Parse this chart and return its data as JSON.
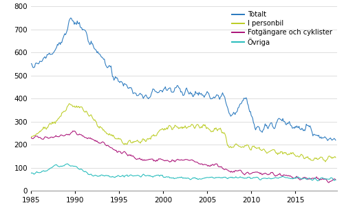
{
  "title": "",
  "ylabel": "",
  "xlabel": "",
  "xlim": [
    1985.0,
    2019.75
  ],
  "ylim": [
    0,
    800
  ],
  "yticks": [
    0,
    100,
    200,
    300,
    400,
    500,
    600,
    700,
    800
  ],
  "xticks": [
    1985,
    1990,
    1995,
    2000,
    2005,
    2010,
    2015
  ],
  "colors": {
    "totalt": "#2878BE",
    "personbil": "#BBCC22",
    "fotgangare": "#AA1177",
    "ovriga": "#22BBBB"
  },
  "legend_labels": [
    "Totalt",
    "I personbil",
    "Fotgängare och cyklister",
    "Övriga"
  ],
  "background_color": "#ffffff",
  "grid_color": "#d8d8d8"
}
